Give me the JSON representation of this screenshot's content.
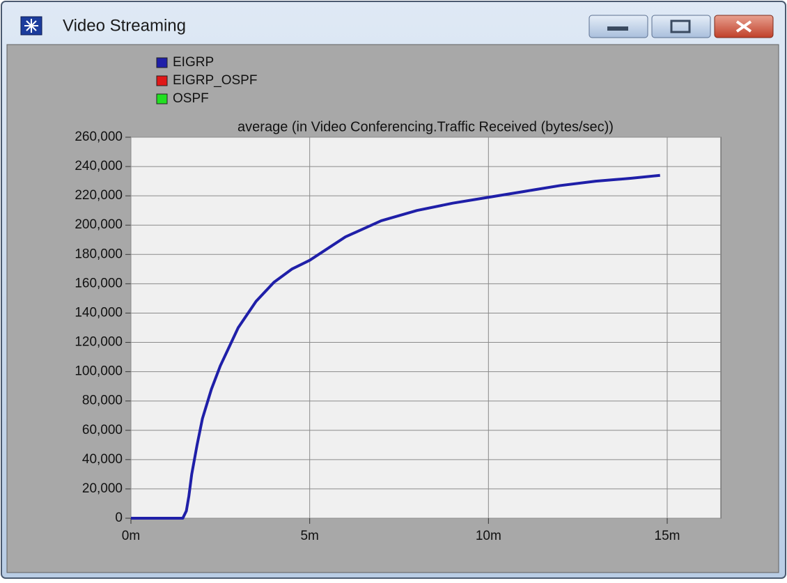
{
  "window": {
    "title": "Video Streaming"
  },
  "chart_data": {
    "type": "line",
    "title": "average (in Video Conferencing.Traffic Received (bytes/sec))",
    "x": [
      0,
      1.45,
      1.55,
      1.62,
      1.7,
      1.85,
      2,
      2.25,
      2.5,
      3,
      3.5,
      4,
      4.5,
      5,
      6,
      7,
      8,
      9,
      10,
      11,
      12,
      13,
      14,
      14.8
    ],
    "series": [
      {
        "name": "EIGRP",
        "color": "#1f1fa8",
        "values": [
          0,
          0,
          5000,
          15000,
          30000,
          50000,
          68000,
          88000,
          104000,
          130000,
          148000,
          161000,
          170000,
          176000,
          192000,
          203000,
          210000,
          215000,
          219000,
          223000,
          227000,
          230000,
          232000,
          234000
        ]
      },
      {
        "name": "EIGRP_OSPF",
        "color": "#e01818"
      },
      {
        "name": "OSPF",
        "color": "#22e022"
      }
    ],
    "xlim": [
      0,
      16.5
    ],
    "xticks": [
      {
        "value": 0,
        "label": "0m"
      },
      {
        "value": 5,
        "label": "5m"
      },
      {
        "value": 10,
        "label": "10m"
      },
      {
        "value": 15,
        "label": "15m"
      }
    ],
    "ylim": [
      0,
      260000
    ],
    "yticks": [
      0,
      {
        "value": 20000,
        "label": "20,000"
      },
      {
        "value": 40000,
        "label": "40,000"
      },
      {
        "value": 60000,
        "label": "60,000"
      },
      {
        "value": 80000,
        "label": "80,000"
      },
      {
        "value": 100000,
        "label": "100,000"
      },
      {
        "value": 120000,
        "label": "120,000"
      },
      {
        "value": 140000,
        "label": "140,000"
      },
      {
        "value": 160000,
        "label": "160,000"
      },
      {
        "value": 180000,
        "label": "180,000"
      },
      {
        "value": 200000,
        "label": "200,000"
      },
      {
        "value": 220000,
        "label": "220,000"
      },
      {
        "value": 240000,
        "label": "240,000"
      },
      {
        "value": 260000,
        "label": "260,000"
      }
    ],
    "grid": true
  }
}
